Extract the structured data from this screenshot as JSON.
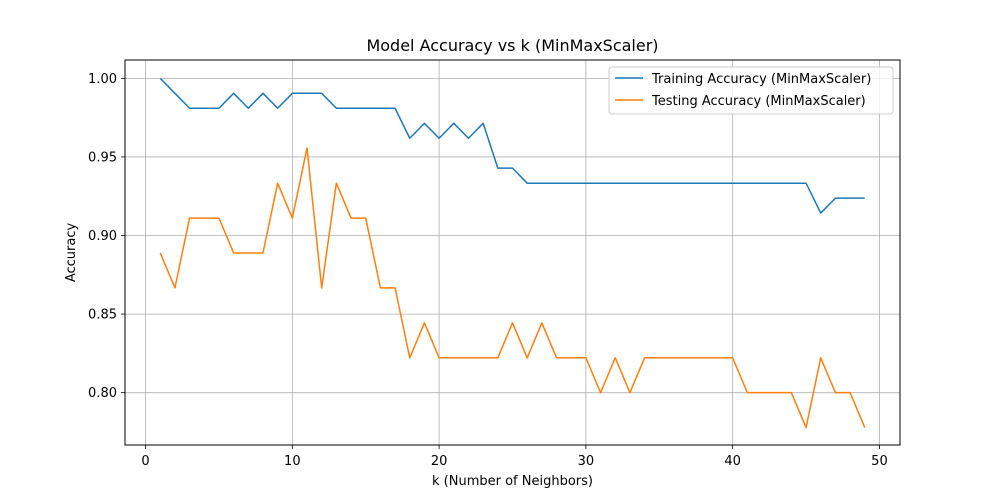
{
  "chart_data": {
    "type": "line",
    "title": "Model Accuracy vs k (MinMaxScaler)",
    "xlabel": "k (Number of Neighbors)",
    "ylabel": "Accuracy",
    "xlim": [
      -1.4,
      51.4
    ],
    "ylim": [
      0.7667,
      1.0117
    ],
    "xticks": [
      0,
      10,
      20,
      30,
      40,
      50
    ],
    "xtick_labels": [
      "0",
      "10",
      "20",
      "30",
      "40",
      "50"
    ],
    "yticks": [
      0.8,
      0.85,
      0.9,
      0.95,
      1.0
    ],
    "ytick_labels": [
      "0.80",
      "0.85",
      "0.90",
      "0.95",
      "1.00"
    ],
    "grid": true,
    "legend_position": "top-right",
    "x": [
      1,
      2,
      3,
      4,
      5,
      6,
      7,
      8,
      9,
      10,
      11,
      12,
      13,
      14,
      15,
      16,
      17,
      18,
      19,
      20,
      21,
      22,
      23,
      24,
      25,
      26,
      27,
      28,
      29,
      30,
      31,
      32,
      33,
      34,
      35,
      36,
      37,
      38,
      39,
      40,
      41,
      42,
      43,
      44,
      45,
      46,
      47,
      48,
      49
    ],
    "series": [
      {
        "name": "Training Accuracy (MinMaxScaler)",
        "color": "#1f77b4",
        "values": [
          1.0,
          0.9905,
          0.981,
          0.981,
          0.981,
          0.9905,
          0.981,
          0.9905,
          0.981,
          0.9905,
          0.9905,
          0.9905,
          0.981,
          0.981,
          0.981,
          0.981,
          0.981,
          0.9619,
          0.9714,
          0.9619,
          0.9714,
          0.9619,
          0.9714,
          0.9429,
          0.9429,
          0.9333,
          0.9333,
          0.9333,
          0.9333,
          0.9333,
          0.9333,
          0.9333,
          0.9333,
          0.9333,
          0.9333,
          0.9333,
          0.9333,
          0.9333,
          0.9333,
          0.9333,
          0.9333,
          0.9333,
          0.9333,
          0.9333,
          0.9333,
          0.9143,
          0.9238,
          0.9238,
          0.9238
        ]
      },
      {
        "name": "Testing Accuracy (MinMaxScaler)",
        "color": "#ff7f0e",
        "values": [
          0.8889,
          0.8667,
          0.9111,
          0.9111,
          0.9111,
          0.8889,
          0.8889,
          0.8889,
          0.9333,
          0.9111,
          0.9556,
          0.8667,
          0.9333,
          0.9111,
          0.9111,
          0.8667,
          0.8667,
          0.8222,
          0.8444,
          0.8222,
          0.8222,
          0.8222,
          0.8222,
          0.8222,
          0.8444,
          0.8222,
          0.8444,
          0.8222,
          0.8222,
          0.8222,
          0.8,
          0.8222,
          0.8,
          0.8222,
          0.8222,
          0.8222,
          0.8222,
          0.8222,
          0.8222,
          0.8222,
          0.8,
          0.8,
          0.8,
          0.8,
          0.7778,
          0.8222,
          0.8,
          0.8,
          0.7778
        ]
      }
    ]
  }
}
